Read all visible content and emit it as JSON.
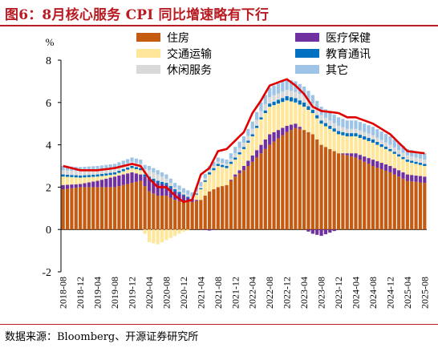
{
  "title": "图6：8月核心服务 CPI 同比增速略有下行",
  "source": "数据来源：Bloomberg、开源证券研究所",
  "chart_data": {
    "type": "bar",
    "stacked": true,
    "y_unit": "%",
    "ylim": [
      -2,
      8
    ],
    "yticks": [
      -2,
      0,
      2,
      4,
      6,
      8
    ],
    "x_start": "2018-08",
    "x_end": "2025-08",
    "x_labels": [
      "2018-08",
      "2018-12",
      "2019-04",
      "2019-08",
      "2019-12",
      "2020-04",
      "2020-08",
      "2020-12",
      "2021-04",
      "2021-08",
      "2021-12",
      "2022-04",
      "2022-08",
      "2022-12",
      "2023-04",
      "2023-08",
      "2023-12",
      "2024-04",
      "2024-08",
      "2024-12",
      "2025-04",
      "2025-08"
    ],
    "legend": [
      {
        "name": "住房",
        "color": "#c55a11"
      },
      {
        "name": "医疗保健",
        "color": "#7030a0"
      },
      {
        "name": "交通运输",
        "color": "#ffe699"
      },
      {
        "name": "教育通讯",
        "color": "#0070c0"
      },
      {
        "name": "休闲服务",
        "color": "#d9d9d9"
      },
      {
        "name": "其它",
        "color": "#9dc3e6"
      }
    ],
    "line": {
      "name": "核心服务CPI同比",
      "color": "#e00000"
    },
    "anchors": {
      "months": [
        0,
        4,
        8,
        12,
        16,
        18,
        20,
        22,
        24,
        26,
        28,
        30,
        32,
        34,
        36,
        38,
        40,
        42,
        44,
        46,
        48,
        52,
        54,
        56,
        58,
        60,
        64,
        66,
        68,
        72,
        76,
        80,
        84
      ],
      "housing": [
        1.9,
        2.0,
        2.0,
        2.0,
        2.2,
        2.3,
        1.8,
        1.6,
        1.6,
        1.4,
        1.3,
        1.3,
        1.4,
        1.8,
        2.0,
        2.1,
        2.5,
        2.8,
        3.2,
        3.6,
        4.0,
        4.6,
        4.8,
        4.7,
        4.5,
        4.0,
        3.6,
        3.5,
        3.4,
        3.0,
        2.7,
        2.3,
        2.2
      ],
      "medical": [
        0.2,
        0.15,
        0.3,
        0.5,
        0.5,
        0.3,
        0.6,
        0.6,
        0.5,
        0.4,
        0.3,
        0.1,
        0.0,
        -0.05,
        0.0,
        0.0,
        0.1,
        0.2,
        0.3,
        0.4,
        0.5,
        0.3,
        0.2,
        0.0,
        -0.2,
        -0.3,
        0.0,
        0.1,
        0.2,
        0.3,
        0.3,
        0.3,
        0.3
      ],
      "transport": [
        0.4,
        0.3,
        0.2,
        0.1,
        0.2,
        0.2,
        -0.6,
        -0.7,
        -0.5,
        -0.3,
        -0.1,
        0.0,
        0.5,
        0.8,
        1.0,
        0.8,
        0.7,
        0.8,
        0.9,
        1.2,
        1.3,
        1.2,
        1.0,
        1.1,
        1.0,
        1.0,
        0.9,
        0.8,
        0.8,
        0.8,
        0.7,
        0.6,
        0.5
      ],
      "edu": [
        0.1,
        0.1,
        0.1,
        0.1,
        0.1,
        0.1,
        0.1,
        0.1,
        0.1,
        0.1,
        0.05,
        0.05,
        0.05,
        0.1,
        0.1,
        0.1,
        0.1,
        0.1,
        0.1,
        0.1,
        0.15,
        0.2,
        0.2,
        0.2,
        0.15,
        0.15,
        0.15,
        0.15,
        0.15,
        0.15,
        0.1,
        0.1,
        0.1
      ],
      "leisure": [
        0.2,
        0.2,
        0.2,
        0.2,
        0.2,
        0.2,
        0.3,
        0.3,
        0.2,
        0.1,
        0.1,
        0.1,
        0.1,
        0.1,
        0.1,
        0.1,
        0.2,
        0.2,
        0.25,
        0.3,
        0.3,
        0.3,
        0.3,
        0.3,
        0.3,
        0.25,
        0.25,
        0.2,
        0.2,
        0.2,
        0.2,
        0.2,
        0.2
      ],
      "other": [
        0.2,
        0.2,
        0.2,
        0.2,
        0.2,
        0.2,
        0.2,
        0.2,
        0.2,
        0.2,
        0.2,
        0.2,
        0.2,
        0.2,
        0.2,
        0.2,
        0.3,
        0.3,
        0.35,
        0.4,
        0.45,
        0.5,
        0.5,
        0.45,
        0.4,
        0.4,
        0.4,
        0.4,
        0.4,
        0.4,
        0.4,
        0.3,
        0.3
      ],
      "total": [
        3.0,
        2.8,
        2.8,
        2.9,
        3.1,
        3.0,
        2.4,
        2.0,
        2.0,
        1.6,
        1.3,
        1.4,
        2.6,
        2.9,
        3.7,
        3.8,
        4.2,
        4.6,
        5.5,
        6.1,
        6.8,
        7.1,
        6.8,
        6.4,
        5.8,
        5.6,
        5.5,
        5.3,
        5.3,
        5.0,
        4.5,
        3.7,
        3.6
      ]
    }
  }
}
